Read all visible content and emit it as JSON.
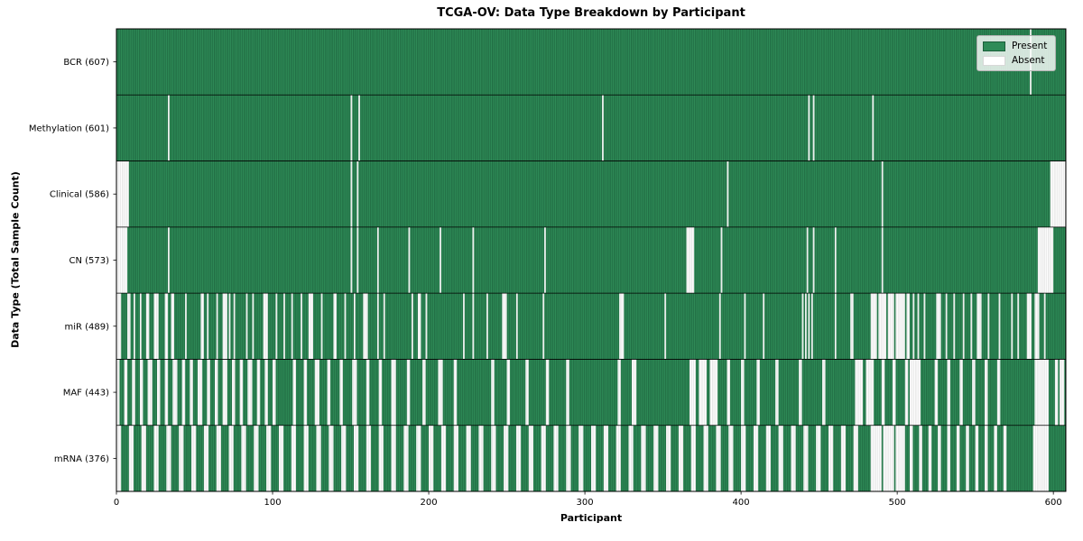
{
  "colors": {
    "present": "#2e8b57",
    "present_edge": "#1b5e3a",
    "absent": "#ffffff",
    "absent_edge": "#d8d8d8",
    "axis": "#000000",
    "legend_border": "#b3b3b3"
  },
  "chart_data": {
    "type": "heatmap",
    "title": "TCGA-OV: Data Type Breakdown by Participant",
    "xlabel": "Participant",
    "ylabel": "Data Type (Total Sample Count)",
    "legend_labels": [
      "Present",
      "Absent"
    ],
    "legend_position": "upper right",
    "x_ticks": [
      0,
      100,
      200,
      300,
      400,
      500,
      600
    ],
    "x_range": [
      0,
      608
    ],
    "total_participants": 608,
    "rows": [
      {
        "label": "BCR (607)",
        "name": "BCR",
        "present_count": 607,
        "absent_ranges": [
          [
            585,
            585
          ]
        ]
      },
      {
        "label": "Methylation (601)",
        "name": "Methylation",
        "present_count": 601,
        "absent_ranges": [
          [
            33,
            33
          ],
          [
            150,
            150
          ],
          [
            155,
            155
          ],
          [
            311,
            311
          ],
          [
            443,
            443
          ],
          [
            446,
            446
          ],
          [
            484,
            484
          ]
        ]
      },
      {
        "label": "Clinical (586)",
        "name": "Clinical",
        "present_count": 586,
        "absent_ranges": [
          [
            0,
            7
          ],
          [
            150,
            150
          ],
          [
            154,
            154
          ],
          [
            391,
            391
          ],
          [
            490,
            490
          ],
          [
            598,
            607
          ]
        ]
      },
      {
        "label": "CN (573)",
        "name": "CN",
        "present_count": 573,
        "absent_ranges": [
          [
            0,
            6
          ],
          [
            33,
            33
          ],
          [
            150,
            150
          ],
          [
            154,
            154
          ],
          [
            167,
            167
          ],
          [
            187,
            187
          ],
          [
            207,
            207
          ],
          [
            228,
            228
          ],
          [
            274,
            274
          ],
          [
            365,
            369
          ],
          [
            387,
            387
          ],
          [
            442,
            442
          ],
          [
            446,
            446
          ],
          [
            460,
            460
          ],
          [
            490,
            490
          ],
          [
            590,
            599
          ]
        ]
      },
      {
        "label": "miR (489)",
        "name": "miR",
        "present_count": 489,
        "absent_ranges": [
          [
            0,
            2
          ],
          [
            7,
            8
          ],
          [
            11,
            11
          ],
          [
            15,
            15
          ],
          [
            19,
            20
          ],
          [
            24,
            26
          ],
          [
            31,
            32
          ],
          [
            35,
            36
          ],
          [
            44,
            44
          ],
          [
            54,
            55
          ],
          [
            58,
            58
          ],
          [
            64,
            64
          ],
          [
            68,
            70
          ],
          [
            72,
            72
          ],
          [
            75,
            75
          ],
          [
            83,
            83
          ],
          [
            87,
            87
          ],
          [
            94,
            96
          ],
          [
            102,
            102
          ],
          [
            107,
            107
          ],
          [
            112,
            112
          ],
          [
            118,
            118
          ],
          [
            123,
            125
          ],
          [
            131,
            131
          ],
          [
            139,
            140
          ],
          [
            146,
            146
          ],
          [
            152,
            152
          ],
          [
            158,
            160
          ],
          [
            167,
            167
          ],
          [
            171,
            171
          ],
          [
            189,
            189
          ],
          [
            193,
            194
          ],
          [
            198,
            198
          ],
          [
            222,
            222
          ],
          [
            228,
            228
          ],
          [
            237,
            237
          ],
          [
            247,
            249
          ],
          [
            256,
            256
          ],
          [
            273,
            273
          ],
          [
            322,
            324
          ],
          [
            351,
            351
          ],
          [
            386,
            386
          ],
          [
            402,
            402
          ],
          [
            414,
            414
          ],
          [
            439,
            439
          ],
          [
            441,
            441
          ],
          [
            443,
            443
          ],
          [
            445,
            445
          ],
          [
            460,
            460
          ],
          [
            470,
            471
          ],
          [
            483,
            486
          ],
          [
            488,
            492
          ],
          [
            494,
            497
          ],
          [
            499,
            504
          ],
          [
            506,
            507
          ],
          [
            510,
            510
          ],
          [
            513,
            513
          ],
          [
            517,
            517
          ],
          [
            525,
            527
          ],
          [
            531,
            531
          ],
          [
            536,
            536
          ],
          [
            542,
            542
          ],
          [
            547,
            547
          ],
          [
            551,
            553
          ],
          [
            558,
            558
          ],
          [
            565,
            565
          ],
          [
            573,
            573
          ],
          [
            577,
            577
          ],
          [
            583,
            585
          ],
          [
            588,
            590
          ],
          [
            594,
            594
          ]
        ]
      },
      {
        "label": "MAF (443)",
        "name": "MAF",
        "present_count": 443,
        "absent_ranges": [
          [
            0,
            1
          ],
          [
            5,
            6
          ],
          [
            10,
            11
          ],
          [
            15,
            16
          ],
          [
            20,
            22
          ],
          [
            26,
            27
          ],
          [
            31,
            32
          ],
          [
            36,
            38
          ],
          [
            42,
            43
          ],
          [
            47,
            48
          ],
          [
            52,
            54
          ],
          [
            58,
            59
          ],
          [
            63,
            64
          ],
          [
            68,
            70
          ],
          [
            74,
            75
          ],
          [
            79,
            80
          ],
          [
            84,
            86
          ],
          [
            90,
            91
          ],
          [
            95,
            96
          ],
          [
            100,
            101
          ],
          [
            113,
            114
          ],
          [
            120,
            121
          ],
          [
            127,
            129
          ],
          [
            135,
            136
          ],
          [
            143,
            144
          ],
          [
            151,
            153
          ],
          [
            160,
            161
          ],
          [
            168,
            169
          ],
          [
            176,
            178
          ],
          [
            186,
            187
          ],
          [
            196,
            197
          ],
          [
            206,
            208
          ],
          [
            216,
            217
          ],
          [
            240,
            241
          ],
          [
            250,
            251
          ],
          [
            262,
            263
          ],
          [
            275,
            276
          ],
          [
            288,
            289
          ],
          [
            321,
            322
          ],
          [
            330,
            332
          ],
          [
            367,
            370
          ],
          [
            373,
            377
          ],
          [
            380,
            384
          ],
          [
            391,
            392
          ],
          [
            400,
            401
          ],
          [
            410,
            411
          ],
          [
            422,
            423
          ],
          [
            437,
            438
          ],
          [
            452,
            453
          ],
          [
            473,
            477
          ],
          [
            480,
            484
          ],
          [
            490,
            491
          ],
          [
            497,
            498
          ],
          [
            505,
            506
          ],
          [
            508,
            514
          ],
          [
            524,
            525
          ],
          [
            532,
            533
          ],
          [
            540,
            541
          ],
          [
            548,
            549
          ],
          [
            556,
            557
          ],
          [
            564,
            565
          ],
          [
            588,
            596
          ],
          [
            601,
            602
          ],
          [
            604,
            606
          ]
        ]
      },
      {
        "label": "mRNA (376)",
        "name": "mRNA",
        "present_count": 376,
        "absent_ranges": [
          [
            0,
            2
          ],
          [
            8,
            10
          ],
          [
            16,
            18
          ],
          [
            24,
            26
          ],
          [
            32,
            34
          ],
          [
            40,
            42
          ],
          [
            48,
            50
          ],
          [
            56,
            58
          ],
          [
            64,
            66
          ],
          [
            72,
            74
          ],
          [
            80,
            82
          ],
          [
            88,
            90
          ],
          [
            96,
            98
          ],
          [
            104,
            106
          ],
          [
            112,
            114
          ],
          [
            120,
            122
          ],
          [
            128,
            130
          ],
          [
            136,
            138
          ],
          [
            144,
            146
          ],
          [
            152,
            154
          ],
          [
            160,
            162
          ],
          [
            168,
            170
          ],
          [
            176,
            178
          ],
          [
            184,
            186
          ],
          [
            192,
            194
          ],
          [
            200,
            202
          ],
          [
            208,
            210
          ],
          [
            216,
            218
          ],
          [
            224,
            226
          ],
          [
            232,
            234
          ],
          [
            240,
            242
          ],
          [
            248,
            250
          ],
          [
            256,
            258
          ],
          [
            264,
            266
          ],
          [
            272,
            274
          ],
          [
            280,
            282
          ],
          [
            288,
            290
          ],
          [
            296,
            298
          ],
          [
            304,
            306
          ],
          [
            312,
            314
          ],
          [
            320,
            322
          ],
          [
            328,
            330
          ],
          [
            336,
            338
          ],
          [
            344,
            346
          ],
          [
            352,
            354
          ],
          [
            360,
            362
          ],
          [
            368,
            370
          ],
          [
            376,
            378
          ],
          [
            384,
            386
          ],
          [
            392,
            394
          ],
          [
            400,
            402
          ],
          [
            408,
            410
          ],
          [
            416,
            418
          ],
          [
            424,
            426
          ],
          [
            432,
            434
          ],
          [
            440,
            442
          ],
          [
            448,
            450
          ],
          [
            456,
            458
          ],
          [
            464,
            466
          ],
          [
            472,
            474
          ],
          [
            483,
            489
          ],
          [
            491,
            497
          ],
          [
            499,
            504
          ],
          [
            508,
            509
          ],
          [
            514,
            515
          ],
          [
            520,
            521
          ],
          [
            526,
            527
          ],
          [
            532,
            533
          ],
          [
            538,
            539
          ],
          [
            544,
            545
          ],
          [
            550,
            551
          ],
          [
            556,
            557
          ],
          [
            562,
            563
          ],
          [
            568,
            569
          ],
          [
            587,
            596
          ]
        ]
      }
    ]
  }
}
